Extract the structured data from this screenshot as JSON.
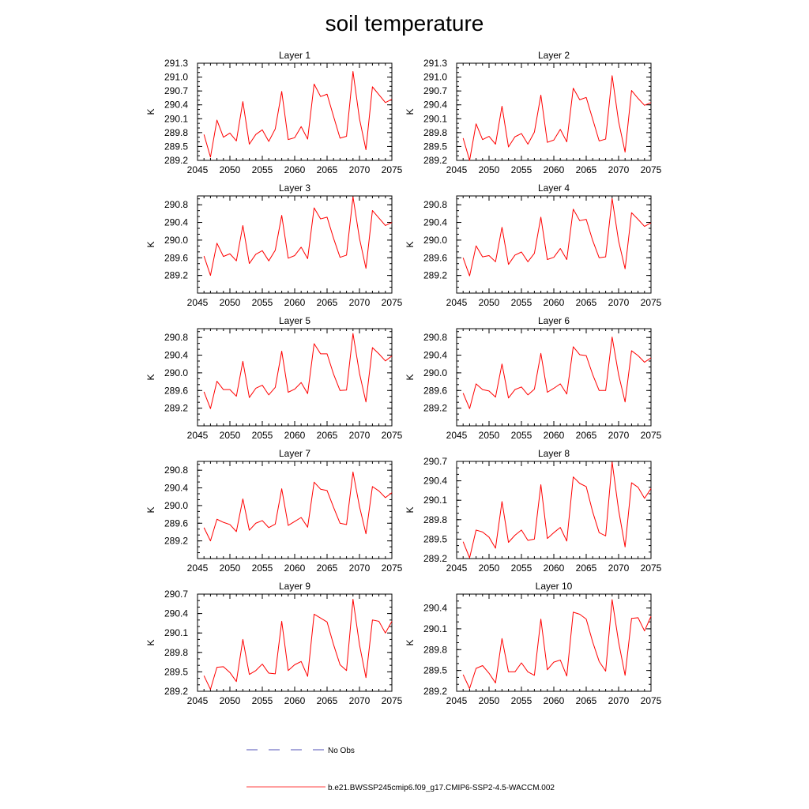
{
  "title": "soil temperature",
  "legend": {
    "no_obs_label": "No Obs",
    "no_obs_color": "#1a1aa0",
    "model_label": "b.e21.BWSSP245cmip6.f09_g17.CMIP6-SSP2-4.5-WACCM.002",
    "model_color": "#ff0000"
  },
  "chart_data": [
    {
      "type": "line",
      "title": "Layer 1",
      "ylabel": "K",
      "xlim": [
        2045,
        2075
      ],
      "ylim": [
        289.2,
        291.3
      ],
      "xticks": [
        2045,
        2050,
        2055,
        2060,
        2065,
        2070,
        2075
      ],
      "yticks": [
        289.2,
        289.5,
        289.8,
        290.1,
        290.4,
        290.7,
        291.0,
        291.3
      ],
      "ytick_labels": [
        "289.2",
        "289.5",
        "289.8",
        "290.1",
        "290.4",
        "290.7",
        "291.0",
        "291.3"
      ],
      "x": [
        2046,
        2047,
        2048,
        2049,
        2050,
        2051,
        2052,
        2053,
        2054,
        2055,
        2056,
        2057,
        2058,
        2059,
        2060,
        2061,
        2062,
        2063,
        2064,
        2065,
        2066,
        2067,
        2068,
        2069,
        2070,
        2071,
        2072,
        2073,
        2074,
        2075
      ],
      "series": [
        {
          "values": [
            289.76,
            289.27,
            290.07,
            289.7,
            289.79,
            289.62,
            290.47,
            289.55,
            289.76,
            289.86,
            289.61,
            289.88,
            290.69,
            289.65,
            289.69,
            289.93,
            289.66,
            290.85,
            290.58,
            290.63,
            290.15,
            289.68,
            289.72,
            291.12,
            290.1,
            289.43,
            290.79,
            290.62,
            290.45,
            290.52
          ]
        }
      ]
    },
    {
      "type": "line",
      "title": "Layer 2",
      "ylabel": "K",
      "xlim": [
        2045,
        2075
      ],
      "ylim": [
        289.2,
        291.3
      ],
      "xticks": [
        2045,
        2050,
        2055,
        2060,
        2065,
        2070,
        2075
      ],
      "yticks": [
        289.2,
        289.5,
        289.8,
        290.1,
        290.4,
        290.7,
        291.0,
        291.3
      ],
      "ytick_labels": [
        "289.2",
        "289.5",
        "289.8",
        "290.1",
        "290.4",
        "290.7",
        "291.0",
        "291.3"
      ],
      "x": [
        2046,
        2047,
        2048,
        2049,
        2050,
        2051,
        2052,
        2053,
        2054,
        2055,
        2056,
        2057,
        2058,
        2059,
        2060,
        2061,
        2062,
        2063,
        2064,
        2065,
        2066,
        2067,
        2068,
        2069,
        2070,
        2071,
        2072,
        2073,
        2074,
        2075
      ],
      "series": [
        {
          "values": [
            289.68,
            289.2,
            289.99,
            289.65,
            289.72,
            289.55,
            290.37,
            289.49,
            289.71,
            289.78,
            289.55,
            289.81,
            290.61,
            289.59,
            289.64,
            289.87,
            289.6,
            290.76,
            290.51,
            290.56,
            290.09,
            289.62,
            289.66,
            291.03,
            290.04,
            289.38,
            290.71,
            290.54,
            290.39,
            290.45
          ]
        }
      ]
    },
    {
      "type": "line",
      "title": "Layer 3",
      "ylabel": "K",
      "xlim": [
        2045,
        2075
      ],
      "ylim": [
        288.8,
        291.0
      ],
      "xticks": [
        2045,
        2050,
        2055,
        2060,
        2065,
        2070,
        2075
      ],
      "yticks": [
        289.2,
        289.6,
        290.0,
        290.4,
        290.8
      ],
      "ytick_labels": [
        "289.2",
        "289.6",
        "290.0",
        "290.4",
        "290.8"
      ],
      "x": [
        2046,
        2047,
        2048,
        2049,
        2050,
        2051,
        2052,
        2053,
        2054,
        2055,
        2056,
        2057,
        2058,
        2059,
        2060,
        2061,
        2062,
        2063,
        2064,
        2065,
        2066,
        2067,
        2068,
        2069,
        2070,
        2071,
        2072,
        2073,
        2074,
        2075
      ],
      "series": [
        {
          "values": [
            289.64,
            289.2,
            289.93,
            289.63,
            289.69,
            289.53,
            290.33,
            289.47,
            289.68,
            289.76,
            289.53,
            289.77,
            290.56,
            289.59,
            289.65,
            289.84,
            289.58,
            290.73,
            290.48,
            290.52,
            290.04,
            289.61,
            289.66,
            290.98,
            290.04,
            289.36,
            290.67,
            290.5,
            290.33,
            290.4
          ]
        }
      ]
    },
    {
      "type": "line",
      "title": "Layer 4",
      "ylabel": "K",
      "xlim": [
        2045,
        2075
      ],
      "ylim": [
        288.8,
        291.0
      ],
      "xticks": [
        2045,
        2050,
        2055,
        2060,
        2065,
        2070,
        2075
      ],
      "yticks": [
        289.2,
        289.6,
        290.0,
        290.4,
        290.8
      ],
      "ytick_labels": [
        "289.2",
        "289.6",
        "290.0",
        "290.4",
        "290.8"
      ],
      "x": [
        2046,
        2047,
        2048,
        2049,
        2050,
        2051,
        2052,
        2053,
        2054,
        2055,
        2056,
        2057,
        2058,
        2059,
        2060,
        2061,
        2062,
        2063,
        2064,
        2065,
        2066,
        2067,
        2068,
        2069,
        2070,
        2071,
        2072,
        2073,
        2074,
        2075
      ],
      "series": [
        {
          "values": [
            289.6,
            289.19,
            289.87,
            289.62,
            289.65,
            289.51,
            290.29,
            289.45,
            289.66,
            289.73,
            289.51,
            289.7,
            290.52,
            289.56,
            289.61,
            289.81,
            289.56,
            290.7,
            290.44,
            290.47,
            289.99,
            289.6,
            289.62,
            290.94,
            289.98,
            289.35,
            290.62,
            290.47,
            290.31,
            290.39
          ]
        }
      ]
    },
    {
      "type": "line",
      "title": "Layer 5",
      "ylabel": "K",
      "xlim": [
        2045,
        2075
      ],
      "ylim": [
        288.8,
        291.0
      ],
      "xticks": [
        2045,
        2050,
        2055,
        2060,
        2065,
        2070,
        2075
      ],
      "yticks": [
        289.2,
        289.6,
        290.0,
        290.4,
        290.8
      ],
      "ytick_labels": [
        "289.2",
        "289.6",
        "290.0",
        "290.4",
        "290.8"
      ],
      "x": [
        2046,
        2047,
        2048,
        2049,
        2050,
        2051,
        2052,
        2053,
        2054,
        2055,
        2056,
        2057,
        2058,
        2059,
        2060,
        2061,
        2062,
        2063,
        2064,
        2065,
        2066,
        2067,
        2068,
        2069,
        2070,
        2071,
        2072,
        2073,
        2074,
        2075
      ],
      "series": [
        {
          "values": [
            289.57,
            289.19,
            289.81,
            289.62,
            289.62,
            289.47,
            290.26,
            289.44,
            289.65,
            289.72,
            289.5,
            289.67,
            290.49,
            289.56,
            289.63,
            289.78,
            289.53,
            290.66,
            290.43,
            290.43,
            289.97,
            289.6,
            289.61,
            290.89,
            289.99,
            289.34,
            290.57,
            290.43,
            290.27,
            290.38
          ]
        }
      ]
    },
    {
      "type": "line",
      "title": "Layer 6",
      "ylabel": "K",
      "xlim": [
        2045,
        2075
      ],
      "ylim": [
        288.8,
        291.0
      ],
      "xticks": [
        2045,
        2050,
        2055,
        2060,
        2065,
        2070,
        2075
      ],
      "yticks": [
        289.2,
        289.6,
        290.0,
        290.4,
        290.8
      ],
      "ytick_labels": [
        "289.2",
        "289.6",
        "290.0",
        "290.4",
        "290.8"
      ],
      "x": [
        2046,
        2047,
        2048,
        2049,
        2050,
        2051,
        2052,
        2053,
        2054,
        2055,
        2056,
        2057,
        2058,
        2059,
        2060,
        2061,
        2062,
        2063,
        2064,
        2065,
        2066,
        2067,
        2068,
        2069,
        2070,
        2071,
        2072,
        2073,
        2074,
        2075
      ],
      "series": [
        {
          "values": [
            289.54,
            289.19,
            289.75,
            289.62,
            289.59,
            289.45,
            290.2,
            289.43,
            289.62,
            289.68,
            289.5,
            289.63,
            290.44,
            289.56,
            289.65,
            289.75,
            289.52,
            290.59,
            290.41,
            290.39,
            289.96,
            289.6,
            289.6,
            290.81,
            289.96,
            289.34,
            290.5,
            290.39,
            290.24,
            290.34
          ]
        }
      ]
    },
    {
      "type": "line",
      "title": "Layer 7",
      "ylabel": "K",
      "xlim": [
        2045,
        2075
      ],
      "ylim": [
        288.8,
        291.0
      ],
      "xticks": [
        2045,
        2050,
        2055,
        2060,
        2065,
        2070,
        2075
      ],
      "yticks": [
        289.2,
        289.6,
        290.0,
        290.4,
        290.8
      ],
      "ytick_labels": [
        "289.2",
        "289.6",
        "290.0",
        "290.4",
        "290.8"
      ],
      "x": [
        2046,
        2047,
        2048,
        2049,
        2050,
        2051,
        2052,
        2053,
        2054,
        2055,
        2056,
        2057,
        2058,
        2059,
        2060,
        2061,
        2062,
        2063,
        2064,
        2065,
        2066,
        2067,
        2068,
        2069,
        2070,
        2071,
        2072,
        2073,
        2074,
        2075
      ],
      "series": [
        {
          "values": [
            289.5,
            289.2,
            289.69,
            289.62,
            289.57,
            289.41,
            290.15,
            289.44,
            289.6,
            289.66,
            289.5,
            289.58,
            290.38,
            289.55,
            289.64,
            289.73,
            289.51,
            290.53,
            290.37,
            290.34,
            289.96,
            289.6,
            289.57,
            290.76,
            289.98,
            289.36,
            290.43,
            290.33,
            290.18,
            290.29
          ]
        }
      ]
    },
    {
      "type": "line",
      "title": "Layer 8",
      "ylabel": "K",
      "xlim": [
        2045,
        2075
      ],
      "ylim": [
        289.2,
        290.7
      ],
      "xticks": [
        2045,
        2050,
        2055,
        2060,
        2065,
        2070,
        2075
      ],
      "yticks": [
        289.2,
        289.5,
        289.8,
        290.1,
        290.4,
        290.7
      ],
      "ytick_labels": [
        "289.2",
        "289.5",
        "289.8",
        "290.1",
        "290.4",
        "290.7"
      ],
      "x": [
        2046,
        2047,
        2048,
        2049,
        2050,
        2051,
        2052,
        2053,
        2054,
        2055,
        2056,
        2057,
        2058,
        2059,
        2060,
        2061,
        2062,
        2063,
        2064,
        2065,
        2066,
        2067,
        2068,
        2069,
        2070,
        2071,
        2072,
        2073,
        2074,
        2075
      ],
      "series": [
        {
          "values": [
            289.46,
            289.21,
            289.64,
            289.61,
            289.53,
            289.36,
            290.08,
            289.45,
            289.56,
            289.64,
            289.48,
            289.5,
            290.34,
            289.51,
            289.6,
            289.68,
            289.47,
            290.46,
            290.36,
            290.31,
            289.92,
            289.6,
            289.55,
            290.69,
            289.95,
            289.38,
            290.37,
            290.3,
            290.13,
            290.28
          ]
        }
      ]
    },
    {
      "type": "line",
      "title": "Layer 9",
      "ylabel": "K",
      "xlim": [
        2045,
        2075
      ],
      "ylim": [
        289.2,
        290.7
      ],
      "xticks": [
        2045,
        2050,
        2055,
        2060,
        2065,
        2070,
        2075
      ],
      "yticks": [
        289.2,
        289.5,
        289.8,
        290.1,
        290.4,
        290.7
      ],
      "ytick_labels": [
        "289.2",
        "289.5",
        "289.8",
        "290.1",
        "290.4",
        "290.7"
      ],
      "x": [
        2046,
        2047,
        2048,
        2049,
        2050,
        2051,
        2052,
        2053,
        2054,
        2055,
        2056,
        2057,
        2058,
        2059,
        2060,
        2061,
        2062,
        2063,
        2064,
        2065,
        2066,
        2067,
        2068,
        2069,
        2070,
        2071,
        2072,
        2073,
        2074,
        2075
      ],
      "series": [
        {
          "values": [
            289.44,
            289.23,
            289.57,
            289.58,
            289.49,
            289.35,
            290.0,
            289.46,
            289.52,
            289.62,
            289.48,
            289.47,
            290.28,
            289.52,
            289.61,
            289.66,
            289.43,
            290.39,
            290.33,
            290.27,
            289.92,
            289.61,
            289.52,
            290.62,
            289.92,
            289.41,
            290.3,
            290.28,
            290.1,
            290.28
          ]
        }
      ]
    },
    {
      "type": "line",
      "title": "Layer 10",
      "ylabel": "K",
      "xlim": [
        2045,
        2075
      ],
      "ylim": [
        289.2,
        290.6
      ],
      "xticks": [
        2045,
        2050,
        2055,
        2060,
        2065,
        2070,
        2075
      ],
      "yticks": [
        289.2,
        289.5,
        289.8,
        290.1,
        290.4
      ],
      "ytick_labels": [
        "289.2",
        "289.5",
        "289.8",
        "290.1",
        "290.4"
      ],
      "x": [
        2046,
        2047,
        2048,
        2049,
        2050,
        2051,
        2052,
        2053,
        2054,
        2055,
        2056,
        2057,
        2058,
        2059,
        2060,
        2061,
        2062,
        2063,
        2064,
        2065,
        2066,
        2067,
        2068,
        2069,
        2070,
        2071,
        2072,
        2073,
        2074,
        2075
      ],
      "series": [
        {
          "values": [
            289.44,
            289.24,
            289.53,
            289.57,
            289.46,
            289.32,
            289.96,
            289.48,
            289.48,
            289.61,
            289.48,
            289.43,
            290.24,
            289.51,
            289.62,
            289.65,
            289.42,
            290.34,
            290.31,
            290.24,
            289.91,
            289.63,
            289.49,
            290.52,
            289.91,
            289.43,
            290.25,
            290.26,
            290.07,
            290.28
          ]
        }
      ]
    }
  ]
}
